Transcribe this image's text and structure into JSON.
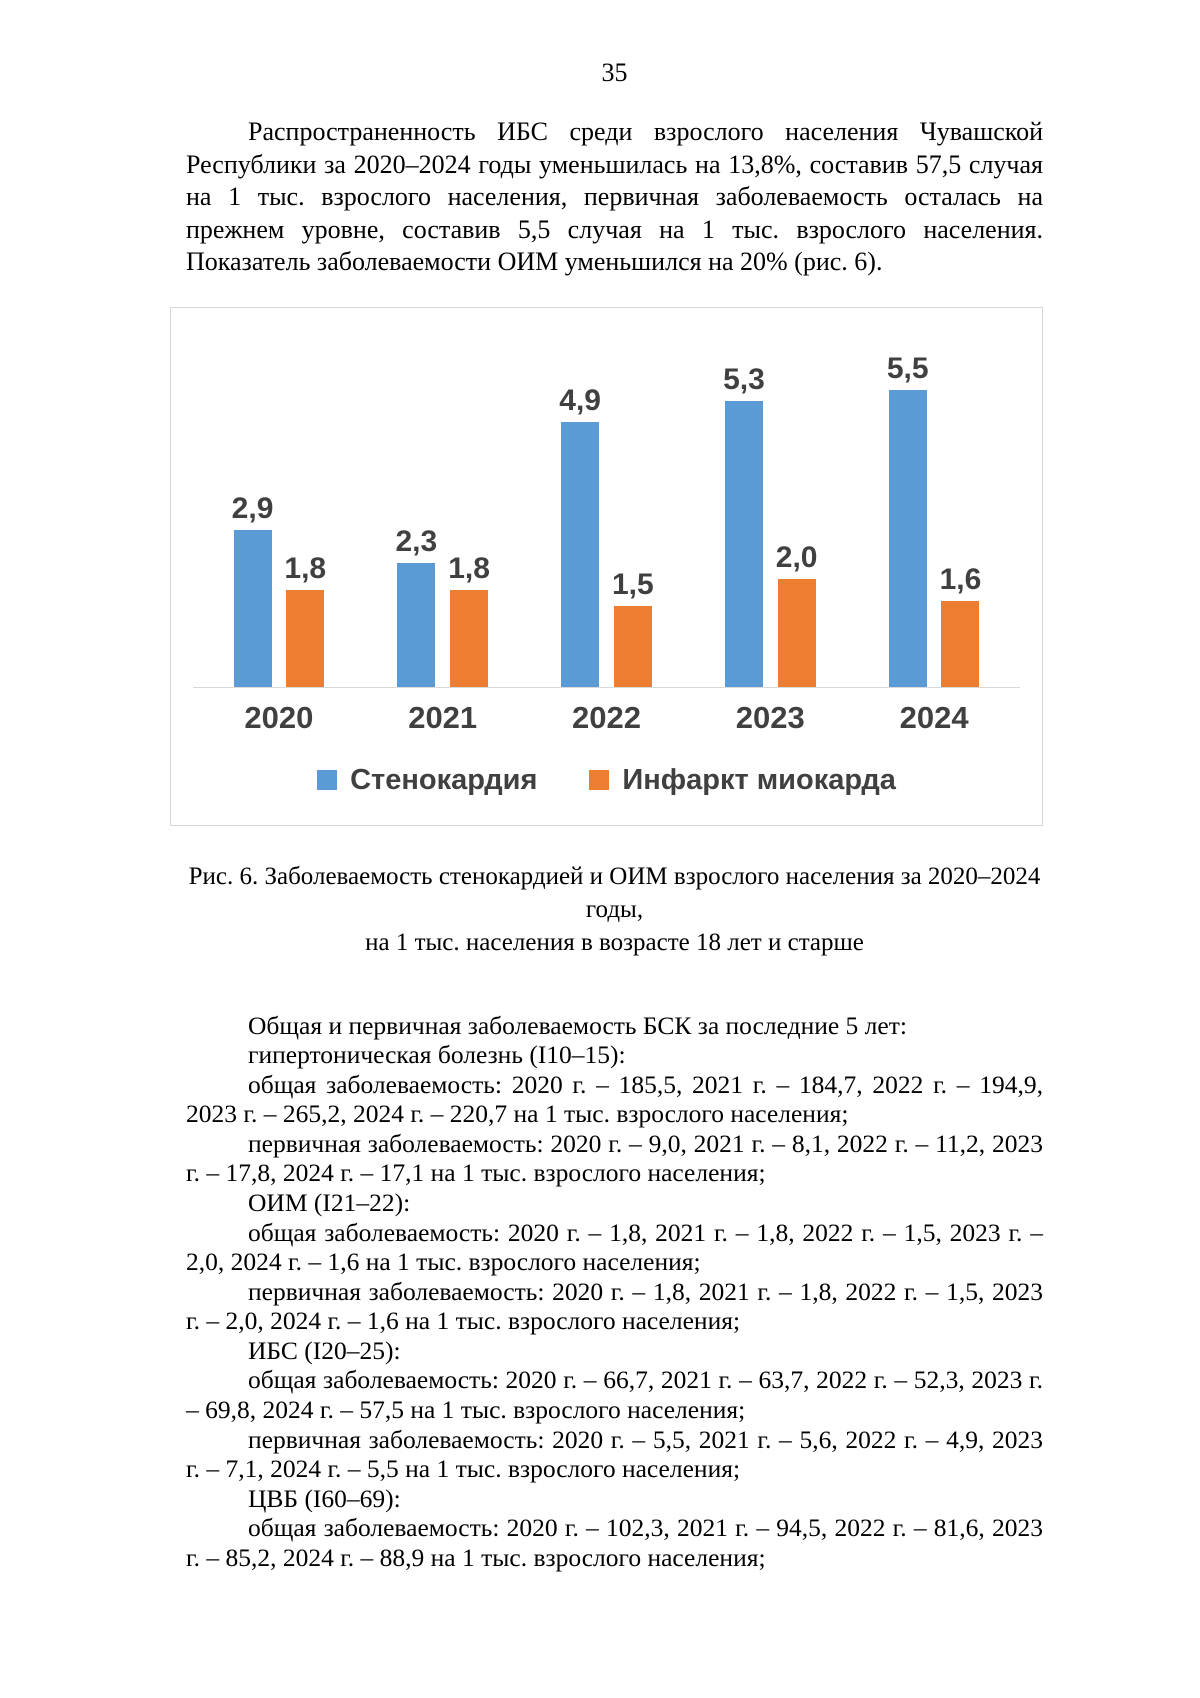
{
  "page": {
    "number": "35"
  },
  "intro_paragraph": "Распространенность ИБС среди взрослого населения Чувашской Республики за 2020–2024 годы уменьшилась на 13,8%, составив 57,5 случая на 1 тыс. взрослого населения, первичная заболеваемость осталась на прежнем уровне, составив 5,5 случая на 1 тыс. взрослого населения. Показатель заболеваемости ОИМ уменьшился на 20% (рис. 6).",
  "chart_data": {
    "type": "bar",
    "categories": [
      "2020",
      "2021",
      "2022",
      "2023",
      "2024"
    ],
    "series": [
      {
        "name": "Стенокардия",
        "color": "#5B9BD5",
        "values": [
          2.9,
          2.3,
          4.9,
          5.3,
          5.5
        ],
        "labels": [
          "2,9",
          "2,3",
          "4,9",
          "5,3",
          "5,5"
        ]
      },
      {
        "name": "Инфаркт миокарда",
        "color": "#ED7D31",
        "values": [
          1.8,
          1.8,
          1.5,
          2.0,
          1.6
        ],
        "labels": [
          "1,8",
          "1,8",
          "1,5",
          "2,0",
          "1,6"
        ]
      }
    ],
    "title": "",
    "xlabel": "",
    "ylabel": "",
    "ylim": [
      0,
      6
    ],
    "grid": false,
    "legend_position": "bottom"
  },
  "figure_caption": {
    "line1": "Рис. 6. Заболеваемость стенокардией и ОИМ взрослого населения за 2020–2024 годы,",
    "line2": "на 1 тыс. населения в возрасте 18 лет и старше"
  },
  "body_paragraphs": [
    "Общая и первичная заболеваемость БСК за последние 5 лет:",
    "гипертоническая болезнь (I10–15):",
    "общая заболеваемость: 2020 г. – 185,5, 2021 г. – 184,7, 2022 г. – 194,9, 2023 г. – 265,2, 2024 г. – 220,7 на 1 тыс. взрослого населения;",
    "первичная заболеваемость: 2020 г. – 9,0, 2021 г. – 8,1, 2022 г. – 11,2, 2023 г. – 17,8, 2024 г. – 17,1 на 1 тыс. взрослого населения;",
    "ОИМ (I21–22):",
    "общая заболеваемость: 2020 г. – 1,8, 2021 г. – 1,8, 2022 г. – 1,5, 2023 г. – 2,0, 2024 г. – 1,6 на 1 тыс. взрослого населения;",
    "первичная заболеваемость: 2020 г. – 1,8, 2021 г. – 1,8, 2022 г. – 1,5, 2023 г. – 2,0, 2024 г. – 1,6 на 1 тыс. взрослого населения;",
    "ИБС (I20–25):",
    "общая заболеваемость: 2020 г. – 66,7, 2021 г. – 63,7, 2022 г. – 52,3, 2023 г. – 69,8, 2024 г. – 57,5 на 1 тыс. взрослого населения;",
    "первичная заболеваемость: 2020 г. – 5,5, 2021 г. – 5,6, 2022 г. – 4,9, 2023 г. – 7,1, 2024 г. – 5,5 на 1 тыс. взрослого населения;",
    "ЦВБ (I60–69):",
    "общая заболеваемость: 2020 г. – 102,3, 2021 г. – 94,5, 2022 г. – 81,6, 2023 г. – 85,2, 2024 г. – 88,9 на 1 тыс. взрослого населения;"
  ]
}
